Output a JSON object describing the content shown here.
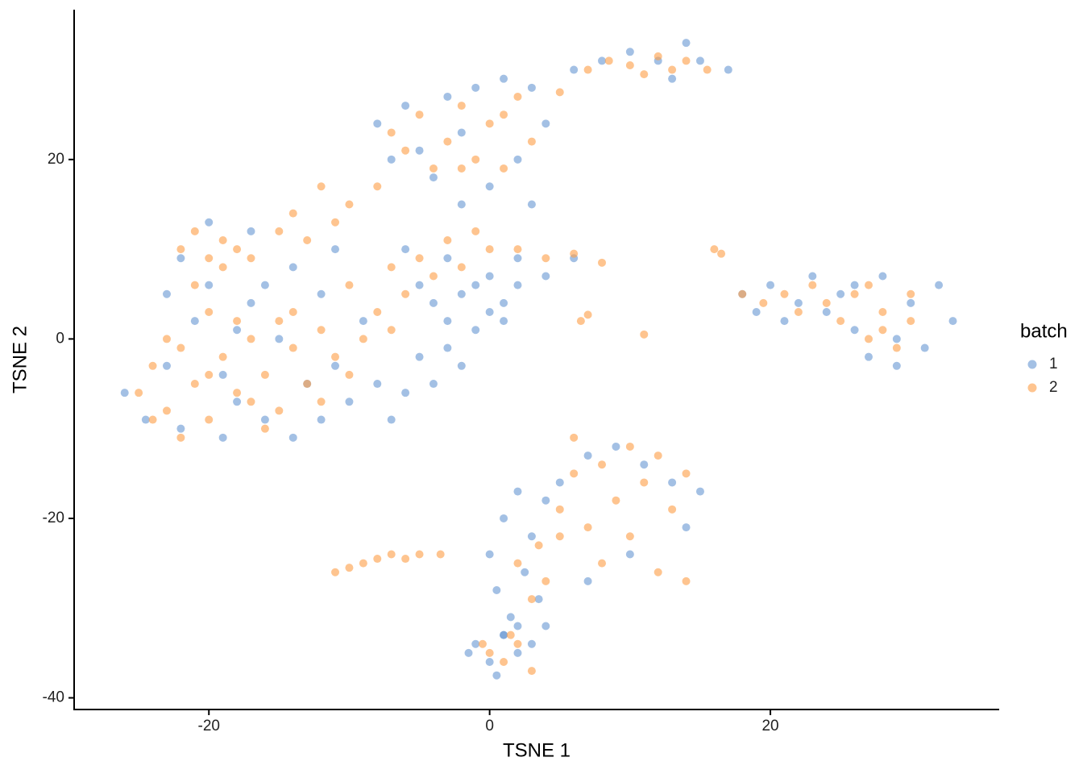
{
  "chart_data": {
    "type": "scatter",
    "x_label": "TSNE 1",
    "y_label": "TSNE 2",
    "legend_title": "batch",
    "legend": "right",
    "grid": false,
    "xlim": [
      -29.6,
      36.3
    ],
    "ylim": [
      -41.3,
      36.7
    ],
    "xticks": [
      -20,
      0,
      20
    ],
    "yticks": [
      -40,
      -20,
      0,
      20
    ],
    "series": [
      {
        "name": "1",
        "color": "#6a9ad3",
        "x": [
          -26,
          -24.5,
          -23,
          -22,
          -21,
          -20,
          -19,
          -18,
          -17,
          -16,
          -15,
          -14,
          -13,
          -12,
          -11,
          -10,
          -22,
          -20,
          -17,
          -14,
          -11,
          -9,
          -8,
          -7,
          -6,
          -12,
          -18,
          -23,
          -19,
          -16,
          -5,
          -4,
          -3,
          -2,
          -1,
          0,
          1,
          2,
          -1,
          0,
          -3,
          -2,
          1,
          -4,
          -5,
          -6,
          -3,
          2,
          4,
          6,
          -8,
          -6,
          -5,
          -4,
          -3,
          -1,
          1,
          3,
          2,
          0,
          -2,
          4,
          3,
          -2,
          -7,
          6,
          8,
          10,
          12,
          13,
          14,
          15,
          17,
          18,
          19,
          20,
          21,
          22,
          23,
          24,
          25,
          26,
          27,
          28,
          29,
          30,
          31,
          32,
          33,
          29,
          26,
          0,
          0.5,
          1,
          1.5,
          2,
          2.5,
          3,
          3.5,
          1,
          4,
          5,
          7,
          9,
          11,
          13,
          15,
          14,
          10,
          7,
          4,
          -1,
          0,
          1,
          2,
          3,
          -1.5,
          0.5,
          2
        ],
        "values": [
          -6,
          -9,
          -3,
          -10,
          2,
          6,
          -11,
          -7,
          4,
          -9,
          0,
          -11,
          -5,
          5,
          -3,
          -7,
          9,
          13,
          12,
          8,
          10,
          2,
          -5,
          -9,
          -6,
          -9,
          1,
          5,
          -4,
          6,
          -2,
          4,
          2,
          5,
          6,
          3,
          4,
          6,
          1,
          7,
          -1,
          -3,
          2,
          -5,
          6,
          10,
          9,
          9,
          7,
          9,
          24,
          26,
          21,
          18,
          27,
          28,
          29,
          28,
          20,
          17,
          23,
          24,
          15,
          15,
          20,
          30,
          31,
          32,
          31,
          29,
          33,
          31,
          30,
          5,
          3,
          6,
          2,
          4,
          7,
          3,
          5,
          1,
          -2,
          7,
          0,
          4,
          -1,
          6,
          2,
          -3,
          6,
          -24,
          -28,
          -20,
          -31,
          -17,
          -26,
          -22,
          -29,
          -33,
          -18,
          -16,
          -13,
          -12,
          -14,
          -16,
          -17,
          -21,
          -24,
          -27,
          -32,
          -34,
          -36,
          -33,
          -35,
          -34,
          -35,
          -37.5,
          -32
        ]
      },
      {
        "name": "2",
        "color": "#fd9f4a",
        "x": [
          -25,
          -24,
          -23,
          -22,
          -21,
          -20,
          -19,
          -18,
          -17,
          -16,
          -15,
          -14,
          -13,
          -12,
          -11,
          -10,
          -20,
          -18,
          -16,
          -14,
          -22,
          -12,
          -9,
          -20,
          -17,
          -15,
          -23,
          -21,
          -19,
          -24,
          -22,
          -21,
          -20,
          -19,
          -18,
          -17,
          -15,
          -14,
          -13,
          -12,
          -11,
          -10,
          -10,
          -8,
          -7,
          -6,
          -5,
          -4,
          -3,
          -2,
          -1,
          0,
          2,
          4,
          6,
          8,
          -7,
          -7,
          -6,
          -5,
          -4,
          -3,
          -2,
          -1,
          0,
          1,
          2,
          3,
          1,
          -2,
          -8,
          5,
          7,
          8.5,
          10,
          11,
          12,
          13,
          14,
          15.5,
          18,
          19.5,
          21,
          22,
          23,
          24,
          25,
          26,
          27,
          28,
          29,
          30,
          27,
          28,
          30,
          2,
          3,
          3.5,
          4,
          5,
          6,
          7,
          8,
          9,
          10,
          11,
          12,
          13,
          14,
          8,
          6,
          10,
          5,
          12,
          14,
          -11,
          -10,
          -9,
          -8,
          -7,
          -6,
          -5,
          -3.5,
          0,
          1,
          2,
          3,
          1.5,
          -0.5,
          6.5,
          7,
          11,
          16.5,
          16
        ],
        "values": [
          -6,
          -3,
          -8,
          -1,
          -5,
          -9,
          -2,
          -6,
          0,
          -4,
          -8,
          -1,
          -5,
          1,
          -2,
          -4,
          3,
          2,
          -10,
          3,
          -11,
          -7,
          0,
          -4,
          -7,
          2,
          0,
          6,
          8,
          -9,
          10,
          12,
          9,
          11,
          10,
          9,
          12,
          14,
          11,
          17,
          13,
          15,
          6,
          3,
          8,
          5,
          9,
          7,
          11,
          8,
          12,
          10,
          10,
          9,
          9.5,
          8.5,
          1,
          23,
          21,
          25,
          19,
          22,
          26,
          20,
          24,
          19,
          27,
          22,
          25,
          19,
          17,
          27.5,
          30,
          31,
          30.5,
          29.5,
          31.5,
          30,
          31,
          30,
          5,
          4,
          5,
          3,
          6,
          4,
          2,
          5,
          0,
          3,
          -1,
          5,
          6,
          1,
          2,
          -25,
          -29,
          -23,
          -27,
          -19,
          -15,
          -21,
          -14,
          -18,
          -22,
          -16,
          -13,
          -19,
          -15,
          -25,
          -11,
          -12,
          -22,
          -26,
          -27,
          -26,
          -25.5,
          -25,
          -24.5,
          -24,
          -24.5,
          -24,
          -24,
          -35,
          -36,
          -34,
          -37,
          -33,
          -34,
          2,
          2.7,
          0.5,
          9.5,
          10
        ]
      }
    ]
  }
}
